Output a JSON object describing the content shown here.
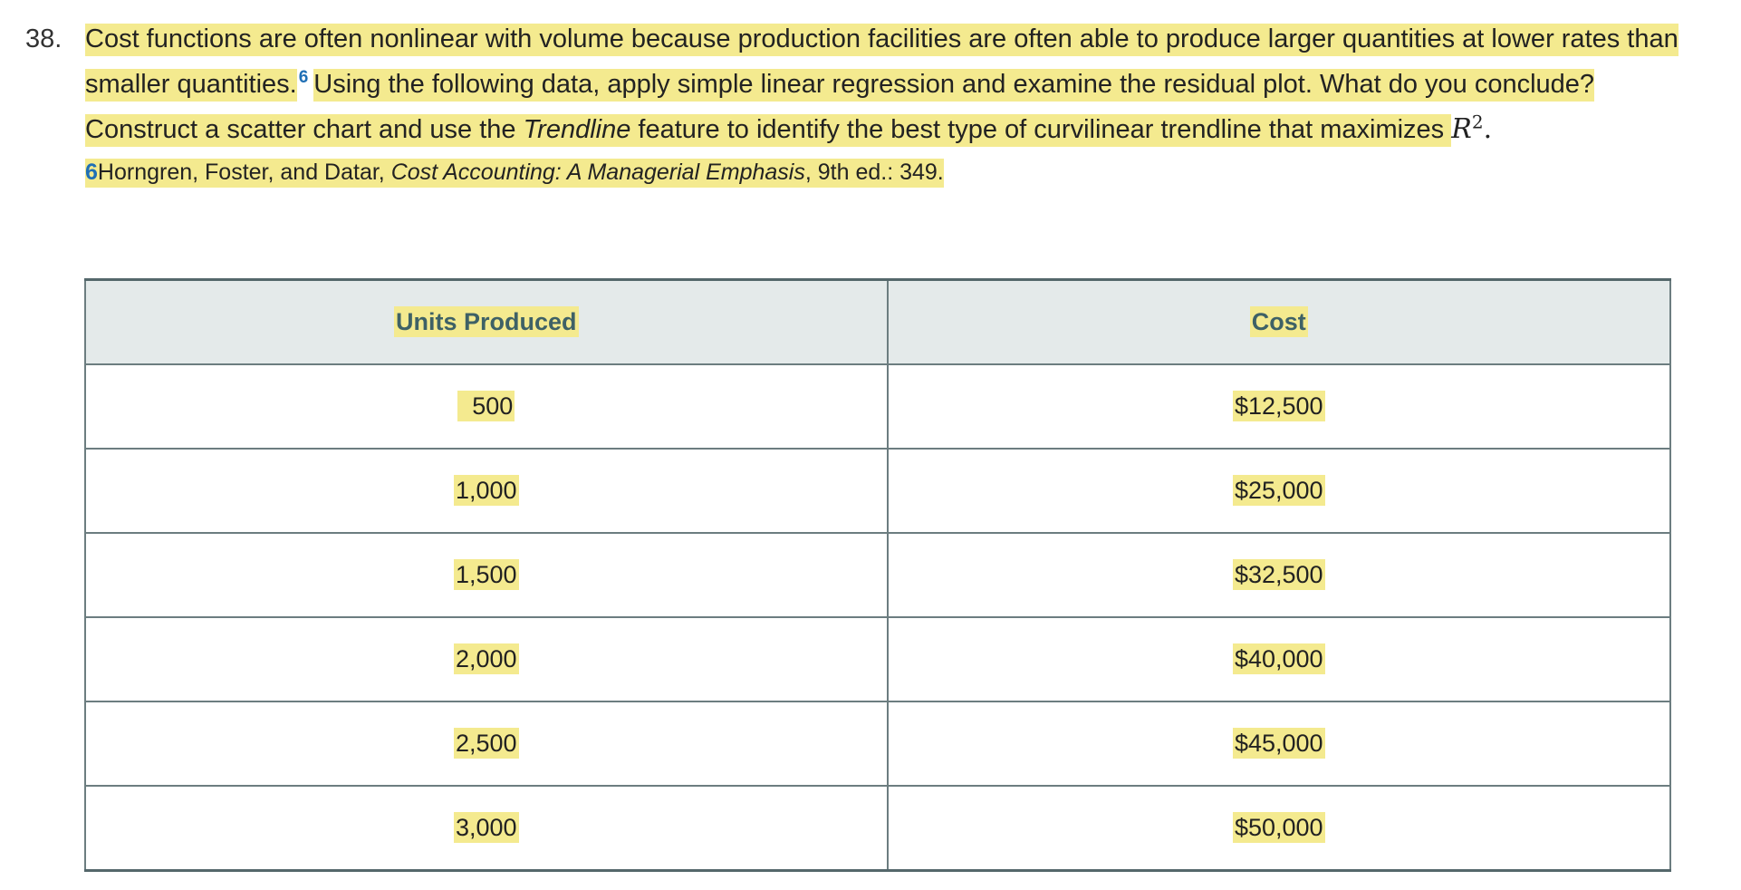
{
  "question": {
    "number": "38.",
    "text_part1": "Cost functions are often nonlinear with volume because production facilities are often able to produce larger quantities at lower rates than smaller quantities.",
    "footnote_ref": "6",
    "text_part2": "Using the following data, apply simple linear regression and examine the residual plot. What do you conclude? Construct a scatter chart and use the ",
    "text_italic": "Trendline",
    "text_part3": " feature to identify the best type of curvilinear trendline that maximizes ",
    "math_var": "R",
    "math_exp": "2",
    "math_end": "."
  },
  "footnote": {
    "number": "6",
    "authors": "Horngren, Foster, and Datar, ",
    "title": "Cost Accounting: A Managerial Emphasis",
    "rest": ", 9th ed.: 349."
  },
  "table": {
    "headers": [
      "Units Produced",
      "Cost"
    ],
    "rows": [
      [
        "500",
        "$12,500"
      ],
      [
        "1,000",
        "$25,000"
      ],
      [
        "1,500",
        "$32,500"
      ],
      [
        "2,000",
        "$40,000"
      ],
      [
        "2,500",
        "$45,000"
      ],
      [
        "3,000",
        "$50,000"
      ]
    ]
  },
  "colors": {
    "highlight": "#f4ea8f",
    "link_blue": "#1f6fb5",
    "header_bg": "#e4eaea",
    "header_text": "#3e6166",
    "table_border": "#54676b"
  }
}
